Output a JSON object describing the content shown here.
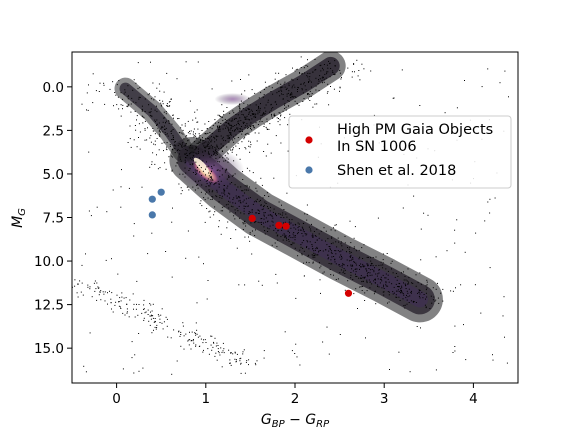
{
  "chart_data": {
    "type": "scatter",
    "title": "",
    "xlabel_main": "G",
    "xlabel_sub1": "BP",
    "xlabel_minus": " − ",
    "xlabel_main2": "G",
    "xlabel_sub2": "RP",
    "ylabel_main": "M",
    "ylabel_sub": "G",
    "xlim": [
      -0.5,
      4.5
    ],
    "ylim": [
      17.0,
      -2.0
    ],
    "xticks": [
      0,
      1,
      2,
      3,
      4
    ],
    "xtick_labels": [
      "0",
      "1",
      "2",
      "3",
      "4"
    ],
    "yticks": [
      0.0,
      2.5,
      5.0,
      7.5,
      10.0,
      12.5,
      15.0
    ],
    "ytick_labels": [
      "0.0",
      "2.5",
      "5.0",
      "7.5",
      "10.0",
      "12.5",
      "15.0"
    ],
    "y_inverted": true,
    "grid": false,
    "legend_placement": "right",
    "legend": [
      {
        "label_line1": "High PM Gaia Objects",
        "label_line2": "In SN 1006",
        "color": "#d40000"
      },
      {
        "label_line1": "Shen et al. 2018",
        "label_line2": "",
        "color": "#4a78aa"
      }
    ],
    "series": [
      {
        "name": "High PM Gaia Objects In SN 1006",
        "color": "#d40000",
        "points": [
          {
            "x": 1.52,
            "y": 7.55
          },
          {
            "x": 1.82,
            "y": 7.95
          },
          {
            "x": 1.9,
            "y": 8.0
          },
          {
            "x": 2.6,
            "y": 11.85
          }
        ]
      },
      {
        "name": "Shen et al. 2018",
        "color": "#4a78aa",
        "points": [
          {
            "x": 0.4,
            "y": 6.45
          },
          {
            "x": 0.5,
            "y": 6.05
          },
          {
            "x": 0.4,
            "y": 7.35
          }
        ]
      }
    ],
    "background_density": {
      "description_colormap": "magma",
      "colors": {
        "low": "#1a1a1a",
        "mid": "#5c3d7a",
        "high": "#ffeecc"
      }
    }
  }
}
